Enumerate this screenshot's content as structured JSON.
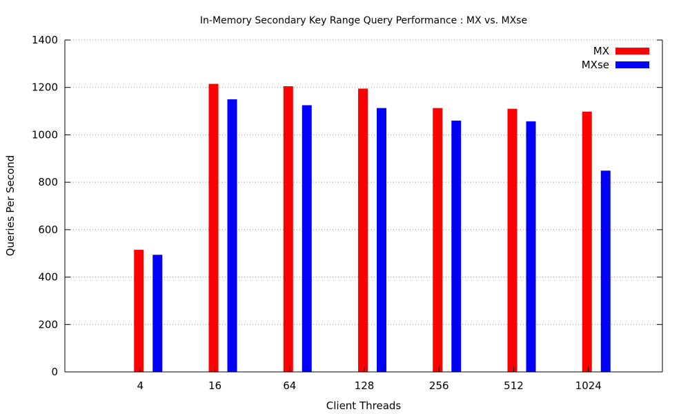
{
  "chart_data": {
    "type": "bar",
    "title": "In-Memory Secondary Key Range Query Performance : MX vs. MXse",
    "xlabel": "Client Threads",
    "ylabel": "Queries Per Second",
    "categories": [
      "4",
      "16",
      "64",
      "128",
      "256",
      "512",
      "1024"
    ],
    "series": [
      {
        "name": "MX",
        "color": "#ff0000",
        "values": [
          515,
          1215,
          1205,
          1195,
          1113,
          1110,
          1098
        ]
      },
      {
        "name": "MXse",
        "color": "#0000ff",
        "values": [
          494,
          1150,
          1125,
          1113,
          1060,
          1057,
          849
        ]
      }
    ],
    "ylim": [
      0,
      1400
    ],
    "yticks": [
      0,
      200,
      400,
      600,
      800,
      1000,
      1200,
      1400
    ],
    "grid": true,
    "legend": "top-right"
  }
}
